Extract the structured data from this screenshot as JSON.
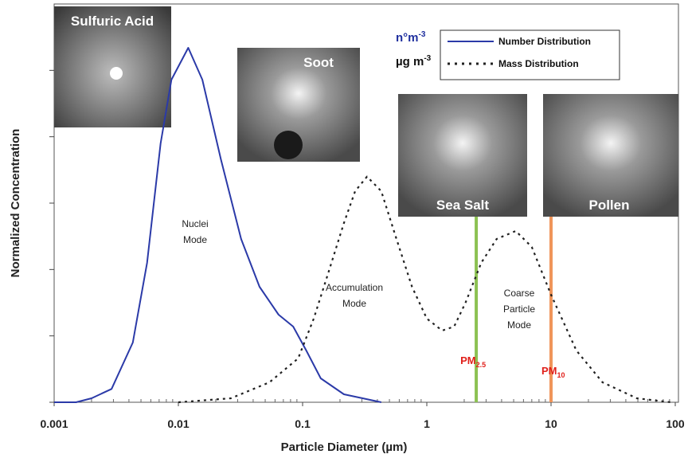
{
  "chart_data": {
    "type": "line",
    "xlabel": "Particle Diameter (µm)",
    "ylabel": "Normalized Concentration",
    "xscale": "log",
    "xlim": [
      0.001,
      100
    ],
    "xticks": [
      0.001,
      0.01,
      0.1,
      1,
      10,
      100
    ],
    "ylim": [
      0,
      6
    ],
    "yticks": [
      0,
      1,
      2,
      3,
      4,
      5
    ],
    "series": [
      {
        "name": "Number Distribution",
        "color": "#2b3aa8",
        "style": "solid",
        "x": [
          0.001,
          0.0015,
          0.002,
          0.0029,
          0.0043,
          0.0056,
          0.0072,
          0.0088,
          0.012,
          0.0156,
          0.022,
          0.032,
          0.045,
          0.064,
          0.084,
          0.107,
          0.14,
          0.215,
          0.43
        ],
        "values": [
          0,
          0,
          0.06,
          0.2,
          0.9,
          2.1,
          3.9,
          4.86,
          5.34,
          4.86,
          3.66,
          2.46,
          1.74,
          1.32,
          1.14,
          0.78,
          0.36,
          0.12,
          0
        ]
      },
      {
        "name": "Mass Distribution",
        "color": "#222222",
        "style": "dotted",
        "x": [
          0.01,
          0.0265,
          0.054,
          0.092,
          0.123,
          0.163,
          0.215,
          0.265,
          0.33,
          0.43,
          0.57,
          0.76,
          1.0,
          1.33,
          1.66,
          2.05,
          2.74,
          3.65,
          5.2,
          7.0,
          10,
          16,
          26,
          49,
          92
        ],
        "values": [
          0,
          0.06,
          0.3,
          0.66,
          1.26,
          1.98,
          2.7,
          3.18,
          3.4,
          3.18,
          2.46,
          1.74,
          1.26,
          1.08,
          1.14,
          1.5,
          2.1,
          2.46,
          2.58,
          2.34,
          1.62,
          0.78,
          0.3,
          0.06,
          0
        ]
      }
    ],
    "vlines": [
      {
        "x": 2.5,
        "color": "#8cc152",
        "label": "PM",
        "subscript": "2.5"
      },
      {
        "x": 10,
        "color": "#f0955a",
        "label": "PM",
        "subscript": "10"
      }
    ],
    "units": [
      {
        "text": "n°m",
        "superscript": "-3",
        "color": "#1f2f9e"
      },
      {
        "text": "µg m",
        "superscript": "-3",
        "color": "#111111"
      }
    ],
    "annotations": [
      {
        "lines": [
          "Nuclei",
          "Mode"
        ]
      },
      {
        "lines": [
          "Accumulation",
          "Mode"
        ]
      },
      {
        "lines": [
          "Coarse",
          "Particle",
          "Mode"
        ]
      }
    ],
    "photos": [
      "Sulfuric Acid",
      "Soot",
      "Sea Salt",
      "Pollen"
    ]
  }
}
